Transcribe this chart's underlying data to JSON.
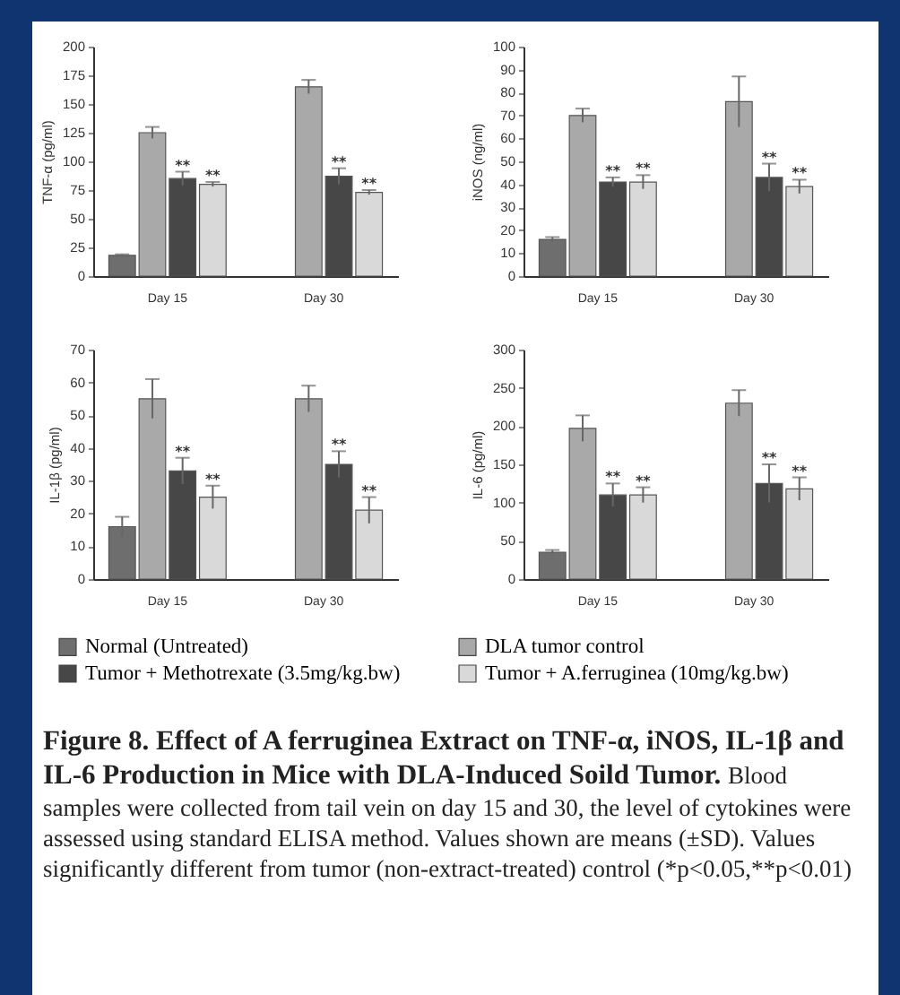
{
  "chart_data": [
    {
      "type": "bar",
      "ylabel": "TNF-α (pg/ml)",
      "categories": [
        "Day 15",
        "Day 30"
      ],
      "ylim": [
        0,
        200
      ],
      "yticks": [
        0,
        25,
        50,
        75,
        100,
        125,
        150,
        175,
        200
      ],
      "series": [
        {
          "color": "#6e6e6e",
          "values": [
            18,
            null
          ],
          "errors": [
            1,
            null
          ]
        },
        {
          "color": "#a9a9a9",
          "values": [
            125,
            165
          ],
          "errors": [
            5,
            6
          ]
        },
        {
          "color": "#474747",
          "values": [
            85,
            87
          ],
          "errors": [
            6,
            7
          ],
          "value_labels": [
            "**",
            "**"
          ]
        },
        {
          "color": "#d9d9d9",
          "values": [
            80,
            73
          ],
          "errors": [
            2,
            2
          ],
          "value_labels": [
            "**",
            "**"
          ]
        }
      ]
    },
    {
      "type": "bar",
      "ylabel": "iNOS (ng/ml)",
      "categories": [
        "Day 15",
        "Day 30"
      ],
      "ylim": [
        0,
        100
      ],
      "yticks": [
        0,
        10,
        20,
        30,
        40,
        50,
        60,
        70,
        80,
        90,
        100
      ],
      "series": [
        {
          "color": "#6e6e6e",
          "values": [
            16,
            null
          ],
          "errors": [
            1,
            null
          ]
        },
        {
          "color": "#a9a9a9",
          "values": [
            70,
            76
          ],
          "errors": [
            3,
            11
          ]
        },
        {
          "color": "#474747",
          "values": [
            41,
            43
          ],
          "errors": [
            2,
            6
          ],
          "value_labels": [
            "**",
            "**"
          ]
        },
        {
          "color": "#d9d9d9",
          "values": [
            41,
            39
          ],
          "errors": [
            3,
            3
          ],
          "value_labels": [
            "**",
            "**"
          ]
        }
      ]
    },
    {
      "type": "bar",
      "ylabel": "IL-1β (pg/ml)",
      "categories": [
        "Day 15",
        "Day 30"
      ],
      "ylim": [
        0,
        70
      ],
      "yticks": [
        0,
        10,
        20,
        30,
        40,
        50,
        60,
        70
      ],
      "series": [
        {
          "color": "#6e6e6e",
          "values": [
            16,
            null
          ],
          "errors": [
            3,
            null
          ]
        },
        {
          "color": "#a9a9a9",
          "values": [
            55,
            55
          ],
          "errors": [
            6,
            4
          ]
        },
        {
          "color": "#474747",
          "values": [
            33,
            35
          ],
          "errors": [
            4,
            4
          ],
          "value_labels": [
            "**",
            "**"
          ]
        },
        {
          "color": "#d9d9d9",
          "values": [
            25,
            21
          ],
          "errors": [
            3.5,
            4
          ],
          "value_labels": [
            "**",
            "**"
          ]
        }
      ]
    },
    {
      "type": "bar",
      "ylabel": "IL-6 (pg/ml)",
      "categories": [
        "Day 15",
        "Day 30"
      ],
      "ylim": [
        0,
        300
      ],
      "yticks": [
        0,
        50,
        100,
        150,
        200,
        250,
        300
      ],
      "legend": "bottom",
      "series": [
        {
          "name": "Normal (Untreated)",
          "color": "#6e6e6e",
          "values": [
            35,
            null
          ],
          "errors": [
            3,
            null
          ]
        },
        {
          "name": "DLA tumor control",
          "color": "#a9a9a9",
          "values": [
            197,
            230
          ],
          "errors": [
            17,
            17
          ]
        },
        {
          "name": "Tumor + Methotrexate (3.5mg/kg.bw)",
          "color": "#474747",
          "values": [
            110,
            125
          ],
          "errors": [
            15,
            25
          ],
          "value_labels": [
            "**",
            "**"
          ]
        },
        {
          "name": "Tumor + A.ferruginea (10mg/kg.bw)",
          "color": "#d9d9d9",
          "values": [
            110,
            118
          ],
          "errors": [
            10,
            15
          ],
          "value_labels": [
            "**",
            "**"
          ]
        }
      ],
      "annotations": [
        "Figure 8. Effect of A ferruginea Extract on TNF-α, iNOS, IL-1β and IL-6 Production in Mice with DLA-Induced Soild Tumor.",
        "Blood samples were collected from tail vein on day 15 and 30, the level of cytokines were assessed using standard ELISA method. Values shown are means (±SD). Values significantly different from tumor (non-extract-treated) control (*p<0.05,**p<0.01)"
      ]
    }
  ]
}
